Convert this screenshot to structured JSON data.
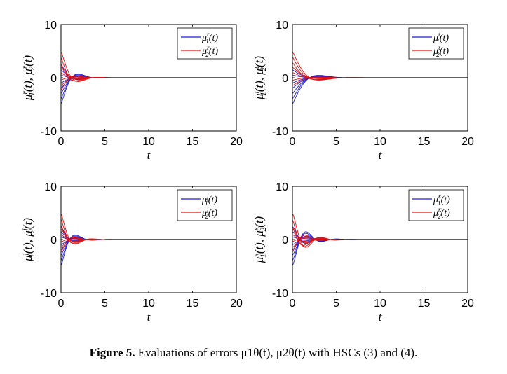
{
  "figure_caption": {
    "label": "Figure 5.",
    "text": "Evaluations of errors μ1θ(t), μ2θ(t) with HSCs (3) and (4)."
  },
  "colors": {
    "series1": "#1f1fd6",
    "series2": "#e01010",
    "zero_line": "#2a2a2a"
  },
  "chart_data": [
    {
      "type": "line",
      "panel": "top-left",
      "title": "",
      "xlabel": "t",
      "ylabel": "μ1r(t), μ2r(t)",
      "xlim": [
        0,
        20
      ],
      "ylim": [
        -10,
        10
      ],
      "xticks": [
        "0",
        "5",
        "10",
        "15",
        "20"
      ],
      "yticks": [
        "-10",
        "0",
        "10"
      ],
      "legend_position": "top-right",
      "series": [
        {
          "name": "μ1r(t)",
          "label": "μ1r(t)",
          "color": "#1f1fd6",
          "initial_values": [
            -5,
            -4,
            -3,
            -2,
            -1,
            0.5,
            1.5,
            2.5
          ],
          "decay": 0.9,
          "freq": 1.3,
          "phase": 0.0,
          "settle_time": 7
        },
        {
          "name": "μ2r(t)",
          "label": "μ2r(t)",
          "color": "#e01010",
          "initial_values": [
            5,
            4,
            3,
            2,
            1,
            -0.5,
            -1.5,
            -2.5
          ],
          "decay": 0.9,
          "freq": 1.3,
          "phase": 0.6,
          "settle_time": 7
        }
      ]
    },
    {
      "type": "line",
      "panel": "top-right",
      "title": "",
      "xlabel": "t",
      "ylabel": "μ1ι(t), μ2ι(t)",
      "xlim": [
        0,
        20
      ],
      "ylim": [
        -10,
        10
      ],
      "xticks": [
        "0",
        "5",
        "10",
        "15",
        "20"
      ],
      "yticks": [
        "-10",
        "0",
        "10"
      ],
      "legend_position": "top-right",
      "series": [
        {
          "name": "μ1ι(t)",
          "label": "μ1ι(t)",
          "color": "#1f1fd6",
          "initial_values": [
            -5,
            -4,
            -3,
            -2,
            -1,
            0.5,
            1.5
          ],
          "decay": 0.7,
          "freq": 0.8,
          "phase": 0.0,
          "settle_time": 7
        },
        {
          "name": "μ2ι(t)",
          "label": "μ2ι(t)",
          "color": "#e01010",
          "initial_values": [
            5,
            4,
            3,
            2,
            1,
            -0.5,
            -1.5
          ],
          "decay": 0.7,
          "freq": 0.8,
          "phase": 0.3,
          "settle_time": 7
        }
      ]
    },
    {
      "type": "line",
      "panel": "bottom-left",
      "title": "",
      "xlabel": "t",
      "ylabel": "μ1j(t), μ2j(t)",
      "xlim": [
        0,
        20
      ],
      "ylim": [
        -10,
        10
      ],
      "xticks": [
        "0",
        "5",
        "10",
        "15",
        "20"
      ],
      "yticks": [
        "-10",
        "0",
        "10"
      ],
      "legend_position": "top-right",
      "series": [
        {
          "name": "μ1j(t)",
          "label": "μ1j(t)",
          "color": "#1f1fd6",
          "initial_values": [
            -5,
            -4,
            -3,
            -2,
            -1,
            0.5,
            1.5,
            2.5
          ],
          "decay": 1.0,
          "freq": 1.6,
          "phase": 0.0,
          "settle_time": 6
        },
        {
          "name": "μ2j(t)",
          "label": "μ2j(t)",
          "color": "#e01010",
          "initial_values": [
            5,
            4,
            3,
            2,
            1,
            -0.5,
            -1.5,
            -2.5
          ],
          "decay": 1.0,
          "freq": 1.6,
          "phase": 0.5,
          "settle_time": 6
        }
      ]
    },
    {
      "type": "line",
      "panel": "bottom-right",
      "title": "",
      "xlabel": "t",
      "ylabel": "μ1κ(t), μ2κ(t)",
      "xlim": [
        0,
        20
      ],
      "ylim": [
        -10,
        10
      ],
      "xticks": [
        "0",
        "5",
        "10",
        "15",
        "20"
      ],
      "yticks": [
        "-10",
        "0",
        "10"
      ],
      "legend_position": "top-right",
      "series": [
        {
          "name": "μ1κ(t)",
          "label": "μ1κ(t)",
          "color": "#1f1fd6",
          "initial_values": [
            -5,
            -4,
            -3,
            -2,
            -1,
            0.5,
            1.5,
            2.5
          ],
          "decay": 0.75,
          "freq": 1.8,
          "phase": 0.0,
          "settle_time": 7
        },
        {
          "name": "μ2κ(t)",
          "label": "μ2κ(t)",
          "color": "#e01010",
          "initial_values": [
            5,
            4,
            3,
            2,
            1,
            -0.5,
            -1.5,
            -2.5
          ],
          "decay": 0.75,
          "freq": 1.8,
          "phase": 0.7,
          "settle_time": 7
        }
      ]
    }
  ]
}
